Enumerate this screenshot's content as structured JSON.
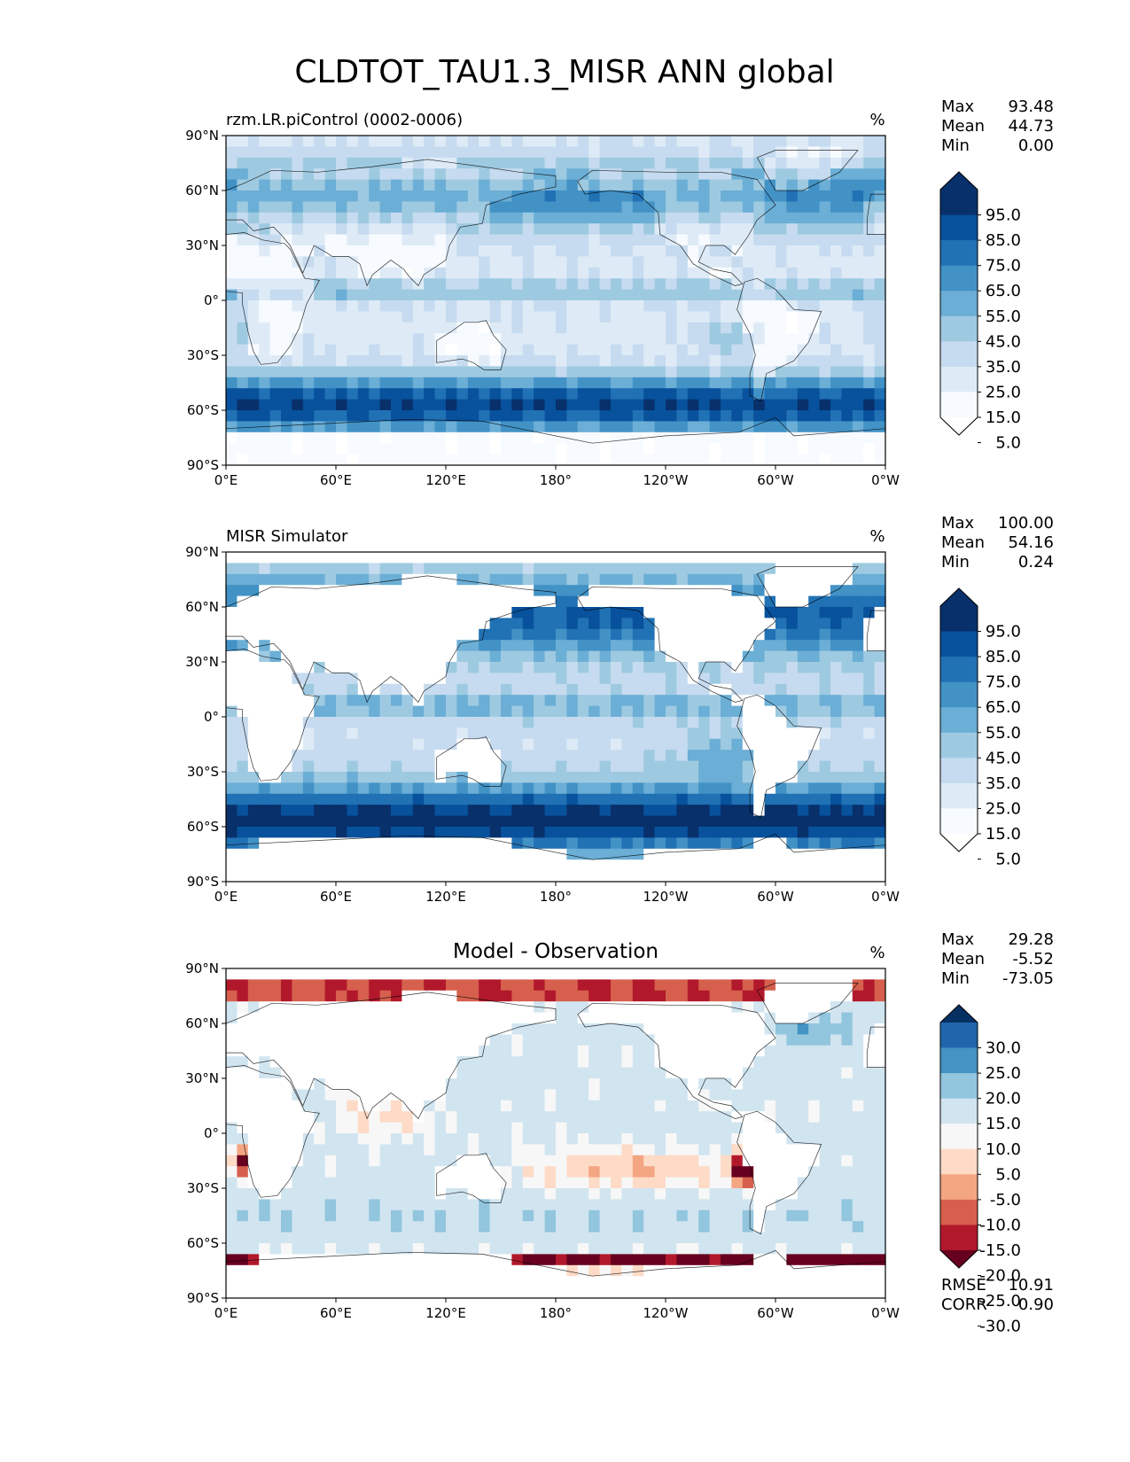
{
  "figure_title": "CLDTOT_TAU1.3_MISR ANN global",
  "colors": {
    "blues": [
      "#f7fbff",
      "#deebf7",
      "#c6dbef",
      "#9ecae1",
      "#6baed6",
      "#4292c6",
      "#2171b5",
      "#08519c",
      "#08306b"
    ],
    "rdbu": [
      "#67001f",
      "#b2182b",
      "#d6604d",
      "#f4a582",
      "#fddbc7",
      "#f7f7f7",
      "#d1e5f0",
      "#92c5de",
      "#4393c3",
      "#2166ac",
      "#053061"
    ],
    "land_white": "#ffffff"
  },
  "chart_data": [
    {
      "type": "heatmap",
      "title": "rzm.LR.piControl (0002-0006)",
      "units": "%",
      "colormap": "Blues",
      "masked_land": false,
      "xticks": [
        "0°E",
        "60°E",
        "120°E",
        "180°",
        "120°W",
        "60°W",
        "0°W"
      ],
      "yticks": [
        "90°N",
        "60°N",
        "30°N",
        "0°",
        "30°S",
        "60°S",
        "90°S"
      ],
      "xlim": [
        0,
        360
      ],
      "ylim": [
        -90,
        90
      ],
      "stats": {
        "labels": [
          "Max",
          "Mean",
          "Min"
        ],
        "values": [
          "93.48",
          "44.73",
          "0.00"
        ]
      },
      "colorbar": {
        "levels": [
          "95.0",
          "85.0",
          "75.0",
          "65.0",
          "55.0",
          "45.0",
          "35.0",
          "25.0",
          "15.0",
          "5.0"
        ],
        "extend": "both"
      },
      "footer": null
    },
    {
      "type": "heatmap",
      "title": "MISR Simulator",
      "units": "%",
      "colormap": "Blues",
      "masked_land": true,
      "xticks": [
        "0°E",
        "60°E",
        "120°E",
        "180°",
        "120°W",
        "60°W",
        "0°W"
      ],
      "yticks": [
        "90°N",
        "60°N",
        "30°N",
        "0°",
        "30°S",
        "60°S",
        "90°S"
      ],
      "xlim": [
        0,
        360
      ],
      "ylim": [
        -90,
        90
      ],
      "stats": {
        "labels": [
          "Max",
          "Mean",
          "Min"
        ],
        "values": [
          "100.00",
          "54.16",
          "0.24"
        ]
      },
      "colorbar": {
        "levels": [
          "95.0",
          "85.0",
          "75.0",
          "65.0",
          "55.0",
          "45.0",
          "35.0",
          "25.0",
          "15.0",
          "5.0"
        ],
        "extend": "both"
      },
      "footer": null
    },
    {
      "type": "heatmap",
      "title": "Model - Observation",
      "units": "%",
      "colormap": "RdBu",
      "masked_land": true,
      "xticks": [
        "0°E",
        "60°E",
        "120°E",
        "180°",
        "120°W",
        "60°W",
        "0°W"
      ],
      "yticks": [
        "90°N",
        "60°N",
        "30°N",
        "0°",
        "30°S",
        "60°S",
        "90°S"
      ],
      "xlim": [
        0,
        360
      ],
      "ylim": [
        -90,
        90
      ],
      "stats": {
        "labels": [
          "Max",
          "Mean",
          "Min"
        ],
        "values": [
          "29.28",
          "-5.52",
          "-73.05"
        ]
      },
      "colorbar": {
        "levels": [
          "30.0",
          "25.0",
          "20.0",
          "15.0",
          "10.0",
          "5.0",
          "-5.0",
          "-10.0",
          "-15.0",
          "-20.0",
          "-25.0",
          "-30.0"
        ],
        "extend": "both"
      },
      "footer": {
        "labels": [
          "RMSE",
          "CORR"
        ],
        "values": [
          "10.91",
          "0.90"
        ]
      }
    }
  ]
}
